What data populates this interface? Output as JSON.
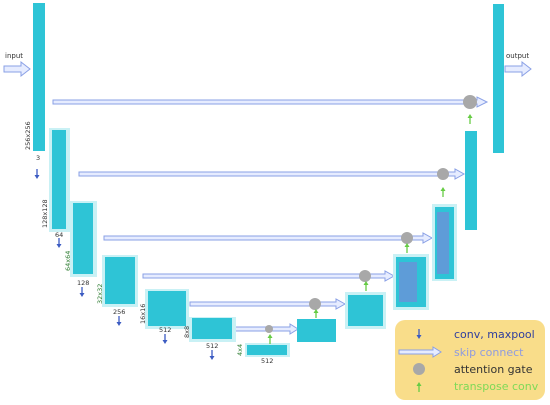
{
  "io": {
    "input": "input",
    "output": "output"
  },
  "encoder": {
    "size_256": "256x256",
    "ch_3": "3",
    "size_128": "128x128",
    "ch_64": "64",
    "size_64": "64x64",
    "ch_128": "128",
    "size_32": "32x32",
    "ch_256": "256",
    "size_16": "16x16",
    "ch_512a": "512",
    "size_8": "8x8",
    "ch_512b": "512",
    "size_4": "4x4",
    "ch_512c": "512"
  },
  "legend": {
    "conv": "conv, maxpool",
    "skip": "skip connect",
    "attention": "attention gate",
    "transpose": "transpose conv"
  },
  "colors": {
    "block": "#2ec4d6",
    "block_dark": "#1fa8bd",
    "decoder_inner": "#6f8fd8",
    "glow": "#c9f1f5",
    "skip_fill": "#e6ecff",
    "skip_stroke": "#8aa0e6",
    "gate": "#a8a8a8",
    "arrow_down": "#3b5bc2",
    "arrow_up": "#66cc44",
    "legend_bg": "#f9dd8a",
    "legend_text_conv": "#2f3e9e",
    "legend_text_skip": "#8f9be0",
    "legend_text_attention": "#333333",
    "legend_text_transpose": "#7ed957"
  }
}
